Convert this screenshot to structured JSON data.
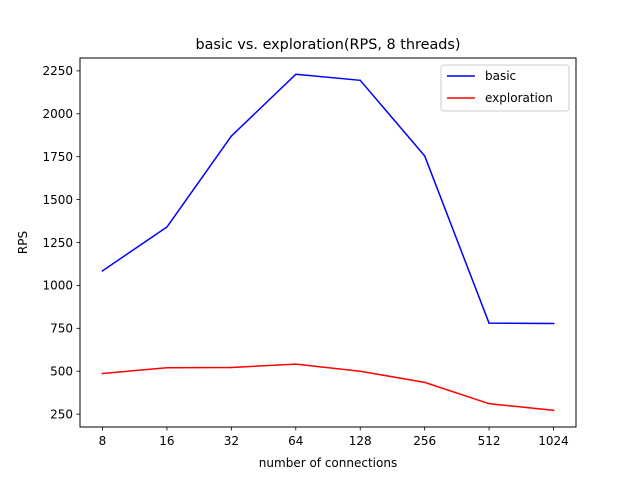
{
  "chart_data": {
    "type": "line",
    "title": "basic vs. exploration(RPS, 8 threads)",
    "xlabel": "number of connections",
    "ylabel": "RPS",
    "categories": [
      "8",
      "16",
      "32",
      "64",
      "128",
      "256",
      "512",
      "1024"
    ],
    "ylim": [
      175,
      2325
    ],
    "yticks": [
      250,
      500,
      750,
      1000,
      1250,
      1500,
      1750,
      2000,
      2250
    ],
    "grid": false,
    "legend_position": "top-right",
    "series": [
      {
        "name": "basic",
        "color": "#0000ff",
        "values": [
          1085,
          1340,
          1870,
          2230,
          2195,
          1755,
          780,
          778
        ]
      },
      {
        "name": "exploration",
        "color": "#ff0000",
        "values": [
          487,
          520,
          522,
          541,
          500,
          435,
          311,
          272
        ]
      }
    ]
  }
}
